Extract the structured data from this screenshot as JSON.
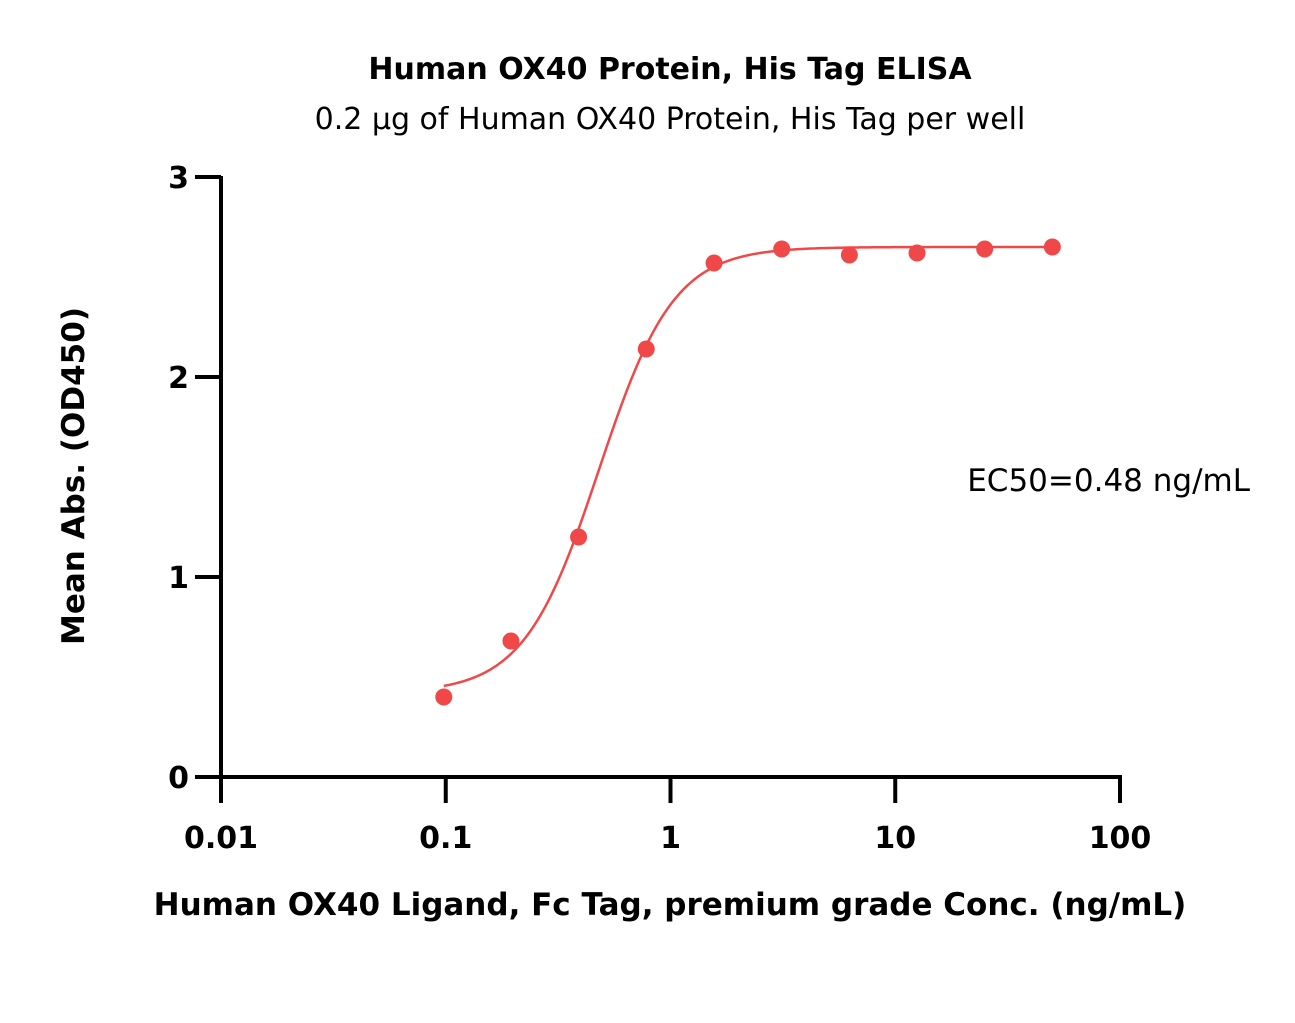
{
  "chart_data": {
    "type": "scatter",
    "title": "Human OX40 Protein, His Tag ELISA",
    "subtitle": "0.2 μg of Human OX40 Protein, His Tag per well",
    "xlabel": "Human OX40 Ligand, Fc Tag, premium grade Conc. (ng/mL)",
    "ylabel": "Mean Abs. (OD450)",
    "x_scale": "log",
    "xlim": [
      0.01,
      100
    ],
    "ylim": [
      0,
      3
    ],
    "x_ticks": [
      "0.01",
      "0.1",
      "1",
      "10",
      "100"
    ],
    "y_ticks": [
      "0",
      "1",
      "2",
      "3"
    ],
    "grid": false,
    "series": [
      {
        "color": "#f04848",
        "x": [
          0.098,
          0.195,
          0.39,
          0.78,
          1.5625,
          3.125,
          6.25,
          12.5,
          25,
          50
        ],
        "y": [
          0.4,
          0.68,
          1.2,
          2.14,
          2.57,
          2.64,
          2.61,
          2.62,
          2.64,
          2.65
        ]
      }
    ],
    "fit": {
      "model": "4PL",
      "bottom": 0.42,
      "top": 2.65,
      "ec50": 0.48,
      "hill": 2.6,
      "color": "#f04848"
    },
    "annotation": "EC50=0.48 ng/mL"
  }
}
